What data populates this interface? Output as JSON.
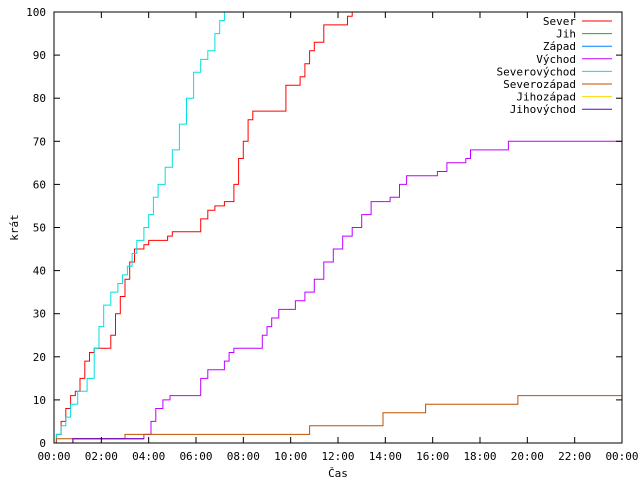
{
  "chart_data": {
    "type": "line",
    "xlabel": "Čas",
    "ylabel": "krát",
    "xlim": [
      0,
      24
    ],
    "ylim": [
      0,
      100
    ],
    "x_unit": "hours",
    "x_ticks": [
      {
        "value": 0,
        "label": "00:00"
      },
      {
        "value": 2,
        "label": "02:00"
      },
      {
        "value": 4,
        "label": "04:00"
      },
      {
        "value": 6,
        "label": "06:00"
      },
      {
        "value": 8,
        "label": "08:00"
      },
      {
        "value": 10,
        "label": "10:00"
      },
      {
        "value": 12,
        "label": "12:00"
      },
      {
        "value": 14,
        "label": "14:00"
      },
      {
        "value": 16,
        "label": "16:00"
      },
      {
        "value": 18,
        "label": "18:00"
      },
      {
        "value": 20,
        "label": "20:00"
      },
      {
        "value": 22,
        "label": "22:00"
      },
      {
        "value": 24,
        "label": "00:00"
      }
    ],
    "y_ticks": [
      0,
      10,
      20,
      30,
      40,
      50,
      60,
      70,
      80,
      90,
      100
    ],
    "grid": false,
    "legend": "top-right",
    "series": [
      {
        "name": "Sever",
        "color": "#ff0000",
        "step": true,
        "points": [
          [
            0,
            0
          ],
          [
            0.1,
            2
          ],
          [
            0.3,
            5
          ],
          [
            0.5,
            8
          ],
          [
            0.7,
            11
          ],
          [
            0.9,
            12
          ],
          [
            1.1,
            15
          ],
          [
            1.3,
            19
          ],
          [
            1.5,
            21
          ],
          [
            1.7,
            22
          ],
          [
            2.2,
            22
          ],
          [
            2.4,
            25
          ],
          [
            2.6,
            30
          ],
          [
            2.8,
            34
          ],
          [
            3.0,
            38
          ],
          [
            3.2,
            42
          ],
          [
            3.4,
            45
          ],
          [
            3.8,
            46
          ],
          [
            4.0,
            47
          ],
          [
            4.8,
            48
          ],
          [
            5.0,
            49
          ],
          [
            6.0,
            49
          ],
          [
            6.2,
            52
          ],
          [
            6.5,
            54
          ],
          [
            6.8,
            55
          ],
          [
            7.2,
            56
          ],
          [
            7.6,
            60
          ],
          [
            7.8,
            66
          ],
          [
            8.0,
            70
          ],
          [
            8.2,
            75
          ],
          [
            8.4,
            77
          ],
          [
            9.6,
            77
          ],
          [
            9.8,
            83
          ],
          [
            10.4,
            85
          ],
          [
            10.6,
            88
          ],
          [
            10.8,
            91
          ],
          [
            11.0,
            93
          ],
          [
            11.4,
            97
          ],
          [
            12.4,
            99
          ],
          [
            12.6,
            100
          ]
        ]
      },
      {
        "name": "Jih",
        "color": "#00c000",
        "step": true,
        "points": []
      },
      {
        "name": "Západ",
        "color": "#0080ff",
        "step": true,
        "points": []
      },
      {
        "name": "Východ",
        "color": "#c000ff",
        "step": true,
        "points": [
          [
            0,
            0
          ],
          [
            0.8,
            1
          ],
          [
            3.8,
            2
          ],
          [
            4.1,
            5
          ],
          [
            4.3,
            8
          ],
          [
            4.6,
            10
          ],
          [
            4.9,
            11
          ],
          [
            6.2,
            15
          ],
          [
            6.5,
            17
          ],
          [
            7.2,
            19
          ],
          [
            7.4,
            21
          ],
          [
            7.6,
            22
          ],
          [
            8.8,
            25
          ],
          [
            9.0,
            27
          ],
          [
            9.2,
            29
          ],
          [
            9.5,
            31
          ],
          [
            10.2,
            33
          ],
          [
            10.6,
            35
          ],
          [
            11.0,
            38
          ],
          [
            11.4,
            42
          ],
          [
            11.8,
            45
          ],
          [
            12.2,
            48
          ],
          [
            12.6,
            50
          ],
          [
            13.0,
            53
          ],
          [
            13.4,
            56
          ],
          [
            14.2,
            57
          ],
          [
            14.6,
            60
          ],
          [
            14.9,
            62
          ],
          [
            16.2,
            63
          ],
          [
            16.6,
            65
          ],
          [
            17.4,
            66
          ],
          [
            17.6,
            68
          ],
          [
            19.2,
            70
          ],
          [
            24,
            70
          ]
        ]
      },
      {
        "name": "Severovýchod",
        "color": "#00e0e0",
        "step": true,
        "points": [
          [
            0,
            0
          ],
          [
            0.1,
            2
          ],
          [
            0.3,
            4
          ],
          [
            0.5,
            6
          ],
          [
            0.7,
            9
          ],
          [
            1.0,
            12
          ],
          [
            1.4,
            15
          ],
          [
            1.7,
            22
          ],
          [
            1.9,
            27
          ],
          [
            2.1,
            32
          ],
          [
            2.4,
            35
          ],
          [
            2.7,
            37
          ],
          [
            2.9,
            39
          ],
          [
            3.1,
            41
          ],
          [
            3.3,
            44
          ],
          [
            3.5,
            47
          ],
          [
            3.8,
            50
          ],
          [
            4.0,
            53
          ],
          [
            4.2,
            57
          ],
          [
            4.4,
            60
          ],
          [
            4.7,
            64
          ],
          [
            5.0,
            68
          ],
          [
            5.3,
            74
          ],
          [
            5.6,
            80
          ],
          [
            5.9,
            86
          ],
          [
            6.2,
            89
          ],
          [
            6.5,
            91
          ],
          [
            6.8,
            95
          ],
          [
            7.0,
            98
          ],
          [
            7.2,
            100
          ]
        ]
      },
      {
        "name": "Severozápad",
        "color": "#c05000",
        "step": true,
        "points": [
          [
            0,
            0
          ],
          [
            0.1,
            1
          ],
          [
            3.0,
            2
          ],
          [
            10.8,
            4
          ],
          [
            13.9,
            7
          ],
          [
            15.7,
            9
          ],
          [
            19.6,
            11
          ],
          [
            24,
            11
          ]
        ]
      },
      {
        "name": "Jihozápad",
        "color": "#ffd700",
        "step": true,
        "points": []
      },
      {
        "name": "Jihovýchod",
        "color": "#6000c0",
        "step": true,
        "points": [
          [
            0,
            0
          ],
          [
            0.8,
            1
          ],
          [
            3.8,
            1
          ]
        ]
      }
    ]
  }
}
